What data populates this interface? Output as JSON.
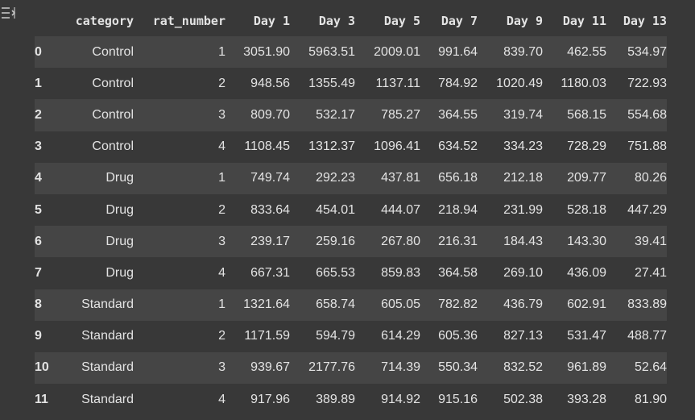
{
  "output_icon": "output-collapse-icon",
  "table": {
    "columns": [
      "",
      "category",
      "rat_number",
      "Day 1",
      "Day 3",
      "Day 5",
      "Day 7",
      "Day 9",
      "Day 11",
      "Day 13"
    ],
    "rows": [
      {
        "index": "0",
        "category": "Control",
        "rat_number": "1",
        "values": [
          "3051.90",
          "5963.51",
          "2009.01",
          "991.64",
          "839.70",
          "462.55",
          "534.97"
        ]
      },
      {
        "index": "1",
        "category": "Control",
        "rat_number": "2",
        "values": [
          "948.56",
          "1355.49",
          "1137.11",
          "784.92",
          "1020.49",
          "1180.03",
          "722.93"
        ]
      },
      {
        "index": "2",
        "category": "Control",
        "rat_number": "3",
        "values": [
          "809.70",
          "532.17",
          "785.27",
          "364.55",
          "319.74",
          "568.15",
          "554.68"
        ]
      },
      {
        "index": "3",
        "category": "Control",
        "rat_number": "4",
        "values": [
          "1108.45",
          "1312.37",
          "1096.41",
          "634.52",
          "334.23",
          "728.29",
          "751.88"
        ]
      },
      {
        "index": "4",
        "category": "Drug",
        "rat_number": "1",
        "values": [
          "749.74",
          "292.23",
          "437.81",
          "656.18",
          "212.18",
          "209.77",
          "80.26"
        ]
      },
      {
        "index": "5",
        "category": "Drug",
        "rat_number": "2",
        "values": [
          "833.64",
          "454.01",
          "444.07",
          "218.94",
          "231.99",
          "528.18",
          "447.29"
        ]
      },
      {
        "index": "6",
        "category": "Drug",
        "rat_number": "3",
        "values": [
          "239.17",
          "259.16",
          "267.80",
          "216.31",
          "184.43",
          "143.30",
          "39.41"
        ]
      },
      {
        "index": "7",
        "category": "Drug",
        "rat_number": "4",
        "values": [
          "667.31",
          "665.53",
          "859.83",
          "364.58",
          "269.10",
          "436.09",
          "27.41"
        ]
      },
      {
        "index": "8",
        "category": "Standard",
        "rat_number": "1",
        "values": [
          "1321.64",
          "658.74",
          "605.05",
          "782.82",
          "436.79",
          "602.91",
          "833.89"
        ]
      },
      {
        "index": "9",
        "category": "Standard",
        "rat_number": "2",
        "values": [
          "1171.59",
          "594.79",
          "614.29",
          "605.36",
          "827.13",
          "531.47",
          "488.77"
        ]
      },
      {
        "index": "10",
        "category": "Standard",
        "rat_number": "3",
        "values": [
          "939.67",
          "2177.76",
          "714.39",
          "550.34",
          "832.52",
          "961.89",
          "52.64"
        ]
      },
      {
        "index": "11",
        "category": "Standard",
        "rat_number": "4",
        "values": [
          "917.96",
          "389.89",
          "914.92",
          "915.16",
          "502.38",
          "393.28",
          "81.90"
        ]
      }
    ]
  }
}
